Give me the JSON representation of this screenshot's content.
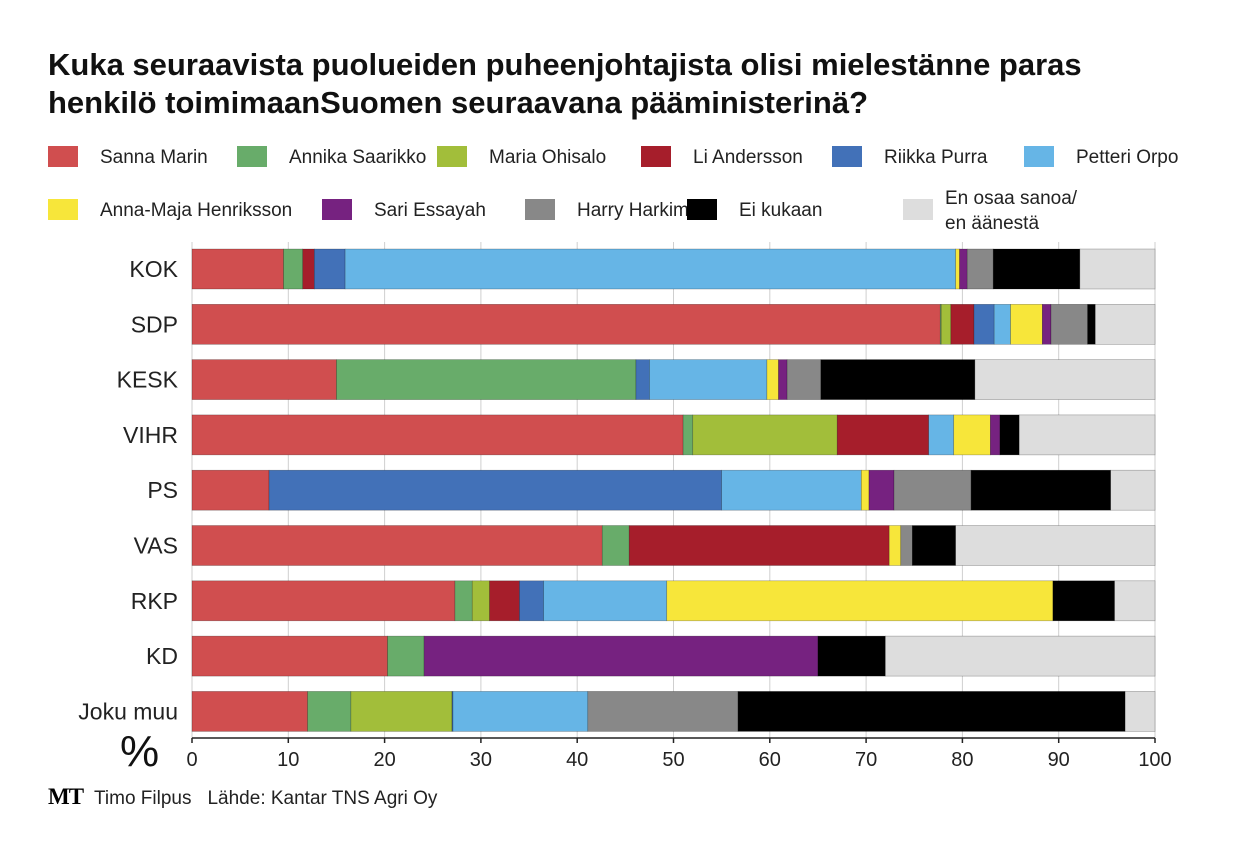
{
  "title": {
    "line1": "Kuka seuraavista puolueiden puheenjohtajista olisi mielestänne paras",
    "line2": "henkilö toimimaanSuomen seuraavana pääministerinä?"
  },
  "footer": {
    "logo": "MT",
    "author": "Timo Filpus",
    "source": "Lähde: Kantar TNS Agri Oy"
  },
  "chart_data": {
    "type": "bar",
    "orientation": "horizontal",
    "stacked": true,
    "xlabel": "%",
    "xlim": [
      0,
      100
    ],
    "xticks": [
      0,
      10,
      20,
      30,
      40,
      50,
      60,
      70,
      80,
      90,
      100
    ],
    "grid": true,
    "legend_position": "top",
    "categories": [
      "KOK",
      "SDP",
      "KESK",
      "VIHR",
      "PS",
      "VAS",
      "RKP",
      "KD",
      "Joku muu"
    ],
    "series": [
      {
        "name": "Sanna Marin",
        "color": "#d04e4f",
        "values": [
          9.5,
          77.7,
          15,
          51,
          8,
          42.6,
          27.3,
          20.3,
          12
        ]
      },
      {
        "name": "Annika Saarikko",
        "color": "#68ac6a",
        "values": [
          2,
          0.1,
          31.1,
          1,
          0,
          2.8,
          1.8,
          3.8,
          4.5
        ]
      },
      {
        "name": "Maria Ohisalo",
        "color": "#a2be3a",
        "values": [
          0,
          1,
          0,
          15,
          0,
          0,
          1.8,
          0,
          10.5
        ]
      },
      {
        "name": "Li Andersson",
        "color": "#a61e2b",
        "values": [
          1.2,
          2.4,
          0,
          9.5,
          0,
          27,
          3.1,
          0,
          0
        ]
      },
      {
        "name": "Riikka Purra",
        "color": "#4271b8",
        "values": [
          3.2,
          2.1,
          1.4,
          0,
          47,
          0,
          2.5,
          0,
          0.1
        ]
      },
      {
        "name": "Petteri Orpo",
        "color": "#66b5e6",
        "values": [
          63.4,
          1.7,
          12.2,
          2.6,
          14.5,
          0,
          12.8,
          0,
          14
        ]
      },
      {
        "name": "Anna-Maja Henriksson",
        "color": "#f7e63a",
        "values": [
          0.4,
          3.3,
          1.2,
          3.8,
          0.8,
          1.2,
          40.1,
          0,
          0
        ]
      },
      {
        "name": "Sari Essayah",
        "color": "#762280",
        "values": [
          0.8,
          0.9,
          0.9,
          1,
          2.6,
          0,
          0,
          40.9,
          0
        ]
      },
      {
        "name": "Harry Harkimo",
        "color": "#888888",
        "values": [
          2.7,
          3.8,
          3.5,
          0,
          8,
          1.2,
          0,
          0,
          15.6
        ]
      },
      {
        "name": "Ei kukaan",
        "color": "#000000",
        "values": [
          9,
          0.8,
          16,
          2,
          14.5,
          4.5,
          6.4,
          7,
          40.2
        ]
      },
      {
        "name": "En osaa sanoa/ en äänestä",
        "color": "#dddddd",
        "values": [
          7.8,
          6.2,
          18.7,
          14.1,
          4.6,
          20.7,
          4.2,
          28,
          3.1
        ]
      }
    ],
    "legend_rows": [
      [
        {
          "label": "Sanna Marin",
          "color": "#d04e4f"
        },
        {
          "label": "Annika Saarikko",
          "color": "#68ac6a"
        },
        {
          "label": "Maria Ohisalo",
          "color": "#a2be3a"
        },
        {
          "label": "Li Andersson",
          "color": "#a61e2b"
        },
        {
          "label": "Riikka Purra",
          "color": "#4271b8"
        },
        {
          "label": "Petteri Orpo",
          "color": "#66b5e6"
        }
      ],
      [
        {
          "label": "Anna-Maja Henriksson",
          "color": "#f7e63a"
        },
        {
          "label": "Sari Essayah",
          "color": "#762280"
        },
        {
          "label": "Harry Harkimo",
          "color": "#888888"
        },
        {
          "label": "Ei kukaan",
          "color": "#000000"
        },
        {
          "label": "En osaa sanoa/",
          "label2": "en äänestä",
          "color": "#dddddd"
        }
      ]
    ]
  }
}
